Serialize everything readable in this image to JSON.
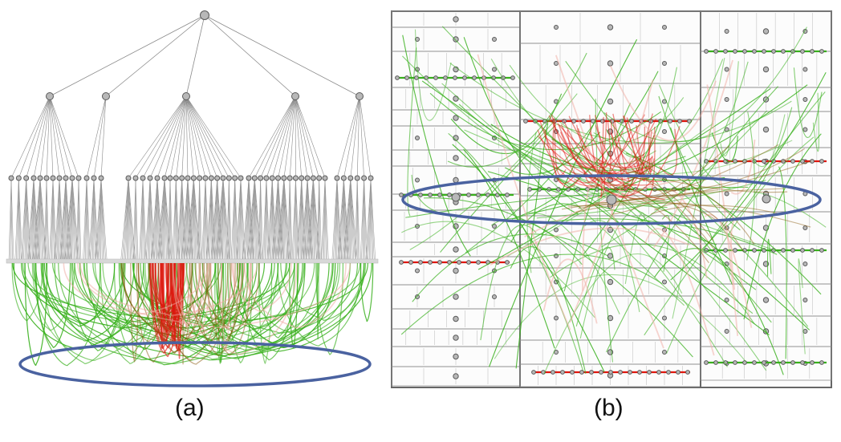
{
  "figure": {
    "panels": [
      {
        "id": "a",
        "caption": "(a)",
        "view": "radial-tree-with-bundled-edges"
      },
      {
        "id": "b",
        "caption": "(b)",
        "view": "treemap-with-bundled-edges"
      }
    ],
    "colors": {
      "tree_edge": "#8a8a8a",
      "node_fill": "#b8b8b8",
      "node_stroke": "#5a5a5a",
      "bundle_green": "#38b01c",
      "bundle_red": "#e0160e",
      "bundle_brown": "#8a5a10",
      "highlight_ellipse": "#4a62a0",
      "treemap_border": "#666666"
    }
  }
}
